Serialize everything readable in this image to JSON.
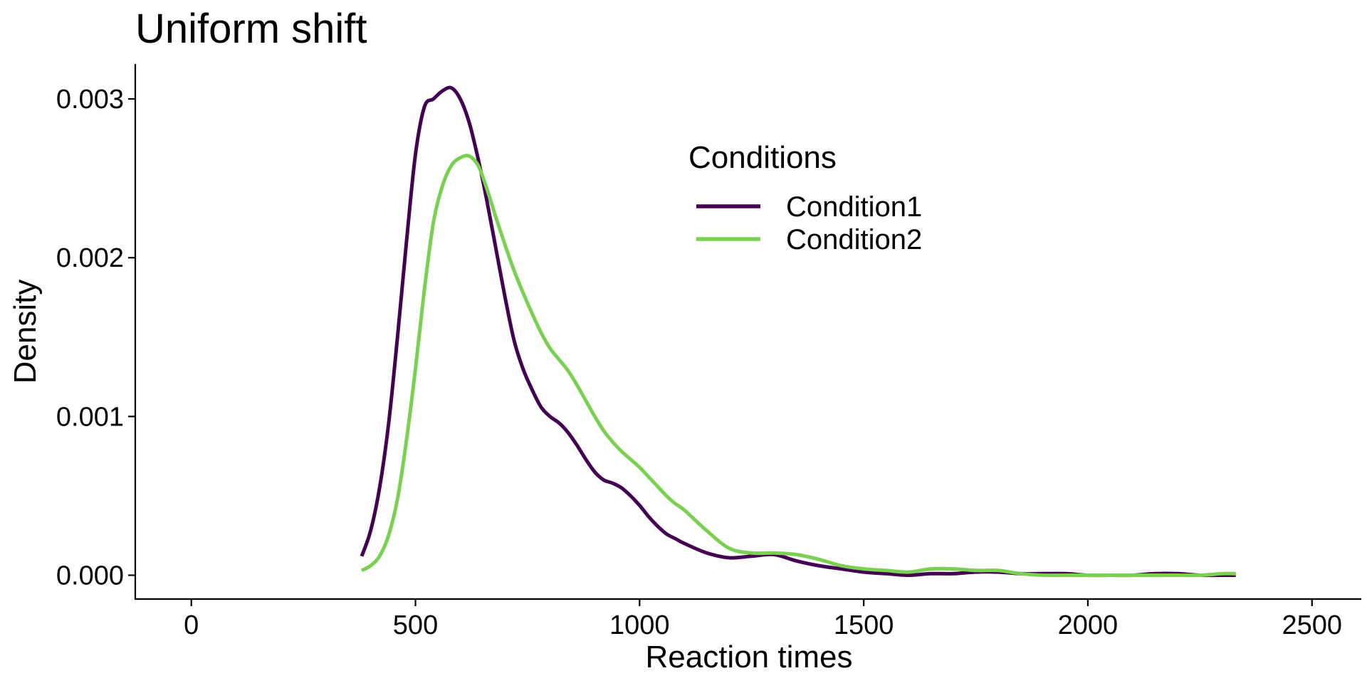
{
  "chart_data": {
    "type": "line",
    "title": "Uniform shift",
    "xlabel": "Reaction times",
    "ylabel": "Density",
    "xlim": [
      -125,
      2610
    ],
    "ylim": [
      -0.00015,
      0.00322
    ],
    "x_ticks": [
      0,
      500,
      1000,
      1500,
      2000,
      2500
    ],
    "x_tick_labels": [
      "0",
      "500",
      "1000",
      "1500",
      "2000",
      "2500"
    ],
    "y_ticks": [
      0,
      0.001,
      0.002,
      0.003
    ],
    "y_tick_labels": [
      "0.000",
      "0.001",
      "0.002",
      "0.003"
    ],
    "grid": false,
    "legend": {
      "title": "Conditions",
      "placement": "top-center-right",
      "entries": [
        "Condition1",
        "Condition2"
      ]
    },
    "series": [
      {
        "name": "Condition1",
        "color": "#440154",
        "x": [
          380,
          400,
          420,
          440,
          460,
          480,
          500,
          520,
          540,
          560,
          580,
          600,
          620,
          640,
          660,
          680,
          700,
          720,
          740,
          760,
          780,
          800,
          820,
          840,
          860,
          880,
          900,
          920,
          940,
          960,
          980,
          1000,
          1020,
          1040,
          1060,
          1080,
          1100,
          1150,
          1200,
          1250,
          1300,
          1350,
          1400,
          1450,
          1500,
          1550,
          1600,
          1650,
          1700,
          1750,
          1800,
          1850,
          1900,
          1950,
          2000,
          2050,
          2100,
          2150,
          2200,
          2250,
          2300,
          2330
        ],
        "y": [
          0.00012,
          0.00028,
          0.00055,
          0.00095,
          0.0015,
          0.0021,
          0.00265,
          0.00295,
          0.003,
          0.00305,
          0.00307,
          0.003,
          0.00285,
          0.00262,
          0.00235,
          0.00205,
          0.00175,
          0.00148,
          0.0013,
          0.00117,
          0.00106,
          0.001,
          0.00096,
          0.0009,
          0.00082,
          0.00073,
          0.00065,
          0.0006,
          0.00058,
          0.00055,
          0.0005,
          0.00044,
          0.00037,
          0.00031,
          0.00026,
          0.00023,
          0.0002,
          0.00014,
          0.00011,
          0.00012,
          0.00013,
          9e-05,
          6e-05,
          4e-05,
          2e-05,
          1e-05,
          0.0,
          1e-05,
          1e-05,
          2e-05,
          2e-05,
          1e-05,
          1e-05,
          1e-05,
          0.0,
          0.0,
          0.0,
          1e-05,
          1e-05,
          0.0,
          0.0,
          0.0
        ]
      },
      {
        "name": "Condition2",
        "color": "#7AD151",
        "x": [
          380,
          400,
          420,
          440,
          460,
          480,
          500,
          520,
          540,
          560,
          580,
          600,
          620,
          640,
          660,
          680,
          700,
          720,
          740,
          760,
          780,
          800,
          820,
          840,
          860,
          880,
          900,
          920,
          940,
          960,
          980,
          1000,
          1020,
          1040,
          1060,
          1080,
          1100,
          1150,
          1200,
          1250,
          1300,
          1350,
          1400,
          1450,
          1500,
          1550,
          1600,
          1650,
          1700,
          1750,
          1800,
          1850,
          1900,
          1950,
          2000,
          2050,
          2100,
          2150,
          2200,
          2250,
          2300,
          2330
        ],
        "y": [
          3e-05,
          6e-05,
          0.00012,
          0.00025,
          0.00048,
          0.00085,
          0.0013,
          0.0018,
          0.00222,
          0.00245,
          0.00258,
          0.00263,
          0.00264,
          0.00258,
          0.00243,
          0.00225,
          0.00208,
          0.00192,
          0.00178,
          0.00165,
          0.00153,
          0.00143,
          0.00136,
          0.00129,
          0.0012,
          0.0011,
          0.001,
          0.00091,
          0.00084,
          0.00078,
          0.00073,
          0.00068,
          0.00062,
          0.00056,
          0.0005,
          0.00045,
          0.00041,
          0.00028,
          0.00017,
          0.00014,
          0.00014,
          0.00013,
          0.0001,
          6e-05,
          4e-05,
          3e-05,
          2e-05,
          4e-05,
          4e-05,
          3e-05,
          3e-05,
          1e-05,
          0.0,
          0.0,
          0.0,
          0.0,
          0.0,
          0.0,
          0.0,
          0.0,
          1e-05,
          1e-05
        ]
      }
    ]
  }
}
